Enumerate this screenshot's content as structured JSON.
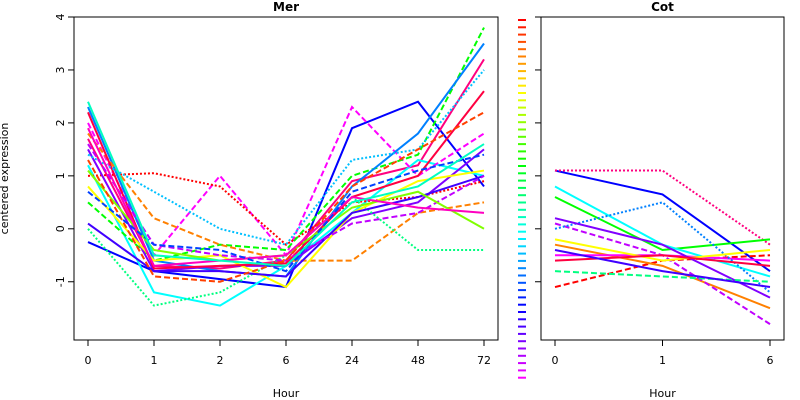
{
  "chart_data": [
    {
      "type": "line",
      "title": "Mer",
      "xlabel": "Hour",
      "ylabel": "centered expression",
      "categories": [
        "0",
        "1",
        "2",
        "6",
        "24",
        "48",
        "72"
      ],
      "ylim": [
        -2.1,
        4
      ],
      "yticks": [
        -1,
        0,
        1,
        2,
        3,
        4
      ],
      "series": [
        {
          "color": "#0000ff",
          "style": "solid",
          "values": [
            -0.25,
            -0.8,
            -0.95,
            -1.1,
            1.9,
            2.4,
            0.8
          ]
        },
        {
          "color": "#ff0080",
          "style": "solid",
          "values": [
            1.7,
            -0.7,
            -0.75,
            -0.6,
            0.9,
            1.2,
            3.2
          ]
        },
        {
          "color": "#00ffff",
          "style": "solid",
          "values": [
            1.2,
            -1.2,
            -1.45,
            -0.7,
            0.3,
            1.3,
            1.0
          ]
        },
        {
          "color": "#ff00ff",
          "style": "dashed",
          "values": [
            2.0,
            -0.5,
            1.0,
            -0.5,
            2.3,
            1.0,
            1.8
          ]
        },
        {
          "color": "#ff0000",
          "style": "dotted",
          "values": [
            1.0,
            1.05,
            0.8,
            -0.3,
            0.5,
            0.6,
            0.9
          ]
        },
        {
          "color": "#00ff00",
          "style": "dashed",
          "values": [
            0.5,
            -0.6,
            -0.3,
            -0.4,
            1.0,
            1.4,
            3.8
          ]
        },
        {
          "color": "#0080ff",
          "style": "solid",
          "values": [
            2.3,
            -0.6,
            -0.8,
            -0.9,
            0.8,
            1.8,
            3.5
          ]
        },
        {
          "color": "#8000ff",
          "style": "solid",
          "values": [
            1.5,
            -0.8,
            -0.7,
            -0.7,
            0.2,
            0.5,
            1.5
          ]
        },
        {
          "color": "#ff8000",
          "style": "dashed",
          "values": [
            1.8,
            0.2,
            -0.3,
            -0.6,
            -0.6,
            0.3,
            0.5
          ]
        },
        {
          "color": "#00ff80",
          "style": "dotted",
          "values": [
            0.0,
            -1.45,
            -1.2,
            -0.5,
            0.6,
            -0.4,
            -0.4
          ]
        },
        {
          "color": "#ffff00",
          "style": "solid",
          "values": [
            0.8,
            -0.6,
            -0.5,
            -1.1,
            0.3,
            0.9,
            1.1
          ]
        },
        {
          "color": "#ff0040",
          "style": "solid",
          "values": [
            2.2,
            -0.75,
            -0.7,
            -0.65,
            0.6,
            1.0,
            2.6
          ]
        },
        {
          "color": "#4000ff",
          "style": "solid",
          "values": [
            0.1,
            -0.8,
            -0.8,
            -0.9,
            0.3,
            0.6,
            1.0
          ]
        },
        {
          "color": "#00c0ff",
          "style": "dotted",
          "values": [
            1.4,
            0.7,
            0.0,
            -0.3,
            1.3,
            1.5,
            3.0
          ]
        },
        {
          "color": "#c000ff",
          "style": "dashed",
          "values": [
            1.6,
            -0.3,
            -0.5,
            -0.6,
            0.1,
            0.3,
            1.0
          ]
        },
        {
          "color": "#80ff00",
          "style": "solid",
          "values": [
            1.1,
            -0.4,
            -0.6,
            -0.5,
            0.4,
            0.7,
            0.0
          ]
        },
        {
          "color": "#ff4000",
          "style": "dashed",
          "values": [
            1.3,
            -0.9,
            -1.0,
            -0.6,
            0.8,
            1.5,
            2.2
          ]
        },
        {
          "color": "#ff00c0",
          "style": "solid",
          "values": [
            1.9,
            -0.7,
            -0.6,
            -0.5,
            0.6,
            0.4,
            0.3
          ]
        },
        {
          "color": "#0040ff",
          "style": "dashed",
          "values": [
            0.7,
            -0.3,
            -0.4,
            -0.8,
            0.7,
            1.1,
            1.4
          ]
        },
        {
          "color": "#00ffc0",
          "style": "solid",
          "values": [
            2.4,
            -0.5,
            -0.6,
            -0.7,
            0.5,
            0.8,
            1.6
          ]
        }
      ]
    },
    {
      "type": "line",
      "title": "Cot",
      "xlabel": "Hour",
      "categories": [
        "0",
        "1",
        "6"
      ],
      "ylim": [
        -2.1,
        4
      ],
      "yticks": [
        -1,
        0,
        1,
        2,
        3,
        4
      ],
      "series": [
        {
          "color": "#0000ff",
          "style": "solid",
          "values": [
            1.1,
            0.65,
            -0.8
          ]
        },
        {
          "color": "#ff0080",
          "style": "dotted",
          "values": [
            1.1,
            1.1,
            -0.3
          ]
        },
        {
          "color": "#ff0000",
          "style": "dashed",
          "values": [
            -1.1,
            -0.6,
            -0.5
          ]
        },
        {
          "color": "#ff8000",
          "style": "solid",
          "values": [
            -0.3,
            -0.7,
            -1.5
          ]
        },
        {
          "color": "#c000ff",
          "style": "dashed",
          "values": [
            0.1,
            -0.5,
            -1.8
          ]
        },
        {
          "color": "#00ff00",
          "style": "solid",
          "values": [
            0.6,
            -0.4,
            -0.2
          ]
        },
        {
          "color": "#00ffff",
          "style": "solid",
          "values": [
            0.8,
            -0.3,
            -0.9
          ]
        },
        {
          "color": "#ff00ff",
          "style": "solid",
          "values": [
            -0.5,
            -0.5,
            -0.6
          ]
        },
        {
          "color": "#0080ff",
          "style": "dotted",
          "values": [
            0.0,
            0.5,
            -1.2
          ]
        },
        {
          "color": "#ffff00",
          "style": "solid",
          "values": [
            -0.2,
            -0.6,
            -0.4
          ]
        },
        {
          "color": "#8000ff",
          "style": "solid",
          "values": [
            0.2,
            -0.3,
            -1.3
          ]
        },
        {
          "color": "#00ff80",
          "style": "dashed",
          "values": [
            -0.8,
            -0.9,
            -1.0
          ]
        },
        {
          "color": "#ff0040",
          "style": "solid",
          "values": [
            -0.6,
            -0.5,
            -0.7
          ]
        },
        {
          "color": "#4000ff",
          "style": "solid",
          "values": [
            -0.4,
            -0.8,
            -1.1
          ]
        }
      ]
    }
  ]
}
